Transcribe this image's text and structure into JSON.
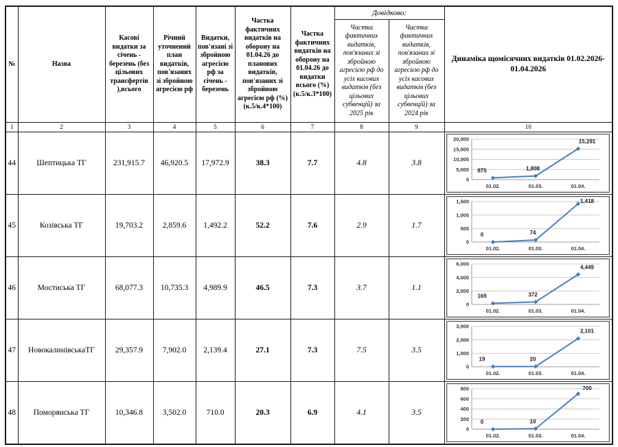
{
  "doc_title": "Динаміка щомісячних видатків 01.02.2026-01.04.2026",
  "table": {
    "headers": {
      "no": "№",
      "name": "Назва",
      "col3": "Касові видатки за січень - березень (без цільових трансфертів ),всього",
      "col4": "Річний уточнений план видатків, пов'язаних зі збройною агресією рф",
      "col5": "Видатки, пов'язані зі збройною агресією рф за січень - березень",
      "col6": "Частка фактичних видатків на оборону на 01.04.26 до планових видатків, пов'язаних зі збройною агресією рф (%) (к.5/к.4*100)",
      "col7": "Частка фактичних видатків на оборону на 01.04.26 до видатки всього (%) (к.5/к.3*100)",
      "dovidkovo": "Довідково:",
      "col8": "Частка фактичних видатків, пов'язаних зі збройною агресією рф до усіх касових видатків (без цільових субвенцій) за 2025 рік",
      "col9": "Частка фактичних видатків, пов'язаних зі збройною агресією рф до усіх касових видатків (без цільових субвенцій) за 2024 рік",
      "col10": "Динаміка щомісячних видатків 01.02.2026-01.04.2026"
    },
    "col_numbers": [
      "1",
      "2",
      "3",
      "4",
      "5",
      "6",
      "7",
      "8",
      "9",
      "10"
    ],
    "rows": [
      {
        "no": "44",
        "name": "Шептицька ТГ",
        "cash": "231,915.7",
        "plan": "46,920.5",
        "spent": "17,972.9",
        "share_plan": "38.3",
        "share_total": "7.7",
        "share_2025": "4.8",
        "share_2024": "3.8"
      },
      {
        "no": "45",
        "name": "Козівська ТГ",
        "cash": "19,703.2",
        "plan": "2,859.6",
        "spent": "1,492.2",
        "share_plan": "52.2",
        "share_total": "7.6",
        "share_2025": "2.9",
        "share_2024": "1.7"
      },
      {
        "no": "46",
        "name": "Мостиська ТГ",
        "cash": "68,077.3",
        "plan": "10,735.3",
        "spent": "4,989.9",
        "share_plan": "46.5",
        "share_total": "7.3",
        "share_2025": "3.7",
        "share_2024": "1.1"
      },
      {
        "no": "47",
        "name": "НовокалинівськаТГ",
        "cash": "29,357.9",
        "plan": "7,902.0",
        "spent": "2,139.4",
        "share_plan": "27.1",
        "share_total": "7.3",
        "share_2025": "7.5",
        "share_2024": "3.5"
      },
      {
        "no": "48",
        "name": "Поморянська ТГ",
        "cash": "10,346.8",
        "plan": "3,502.0",
        "spent": "710.0",
        "share_plan": "20.3",
        "share_total": "6.9",
        "share_2025": "4.1",
        "share_2024": "3.5"
      }
    ]
  },
  "chart_style": {
    "line_color": "#4a7ebc",
    "marker_color": "#4a7ebc",
    "grid_color": "#c9c9c9",
    "axis_color": "#9b9b9b",
    "tick_text_color": "#333333",
    "label_text_color": "#1a1a1a"
  },
  "chart_data": [
    {
      "type": "line",
      "row_no": "44",
      "title": "",
      "categories": [
        "01.02.",
        "01.03.",
        "01.04."
      ],
      "values": [
        875,
        1808,
        15291
      ],
      "value_labels": [
        "875",
        "1,808",
        "15,291"
      ],
      "ylim": [
        0,
        20000
      ],
      "yticks": [
        0,
        5000,
        10000,
        15000,
        20000
      ],
      "ytick_labels": [
        "0",
        "5,000",
        "10,000",
        "15,000",
        "20,000"
      ],
      "grid": true,
      "legend": false
    },
    {
      "type": "line",
      "row_no": "45",
      "title": "",
      "categories": [
        "01.02.",
        "01.03.",
        "01.04."
      ],
      "values": [
        0,
        74,
        1418
      ],
      "value_labels": [
        "0",
        "74",
        "1,418"
      ],
      "ylim": [
        0,
        1500
      ],
      "yticks": [
        0,
        500,
        1000,
        1500
      ],
      "ytick_labels": [
        "0",
        "500",
        "1,000",
        "1,500"
      ],
      "grid": true,
      "legend": false
    },
    {
      "type": "line",
      "row_no": "46",
      "title": "",
      "categories": [
        "01.02.",
        "01.03.",
        "01.04."
      ],
      "values": [
        169,
        372,
        4449
      ],
      "value_labels": [
        "169",
        "372",
        "4,449"
      ],
      "ylim": [
        0,
        6000
      ],
      "yticks": [
        0,
        2000,
        4000,
        6000
      ],
      "ytick_labels": [
        "0",
        "2,000",
        "4,000",
        "6,000"
      ],
      "grid": true,
      "legend": false
    },
    {
      "type": "line",
      "row_no": "47",
      "title": "",
      "categories": [
        "01.02.",
        "01.03.",
        "01.04."
      ],
      "values": [
        19,
        20,
        2101
      ],
      "value_labels": [
        "19",
        "20",
        "2,101"
      ],
      "ylim": [
        0,
        3000
      ],
      "yticks": [
        0,
        1000,
        2000,
        3000
      ],
      "ytick_labels": [
        "0",
        "1,000",
        "2,000",
        "3,000"
      ],
      "grid": true,
      "legend": false
    },
    {
      "type": "line",
      "row_no": "48",
      "title": "",
      "categories": [
        "01.02.",
        "01.03.",
        "01.04."
      ],
      "values": [
        0,
        10,
        700
      ],
      "value_labels": [
        "0",
        "10",
        "700"
      ],
      "ylim": [
        0,
        800
      ],
      "yticks": [
        0,
        200,
        400,
        600,
        800
      ],
      "ytick_labels": [
        "0",
        "200",
        "400",
        "600",
        "800"
      ],
      "grid": true,
      "legend": false
    }
  ]
}
